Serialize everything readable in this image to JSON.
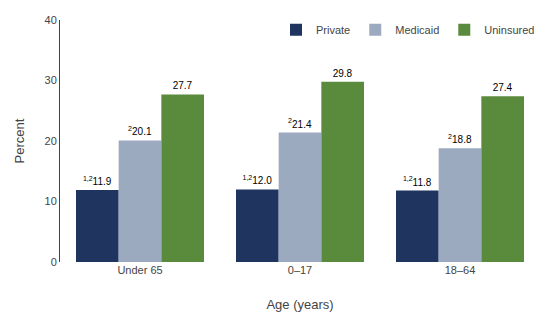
{
  "chart_data": {
    "type": "bar",
    "xlabel": "Age (years)",
    "ylabel": "Percent",
    "categories": [
      "Under 65",
      "0–17",
      "18–64"
    ],
    "series": [
      {
        "name": "Private",
        "color": "#1f3560",
        "values": [
          11.9,
          12.0,
          11.8
        ],
        "value_labels": [
          "11.9",
          "12.0",
          "11.8"
        ],
        "superscripts": [
          "1,2",
          "1,2",
          "1,2"
        ]
      },
      {
        "name": "Medicaid",
        "color": "#9baabf",
        "values": [
          20.1,
          21.4,
          18.8
        ],
        "value_labels": [
          "20.1",
          "21.4",
          "18.8"
        ],
        "superscripts": [
          "2",
          "2",
          "2"
        ]
      },
      {
        "name": "Uninsured",
        "color": "#5a8a3c",
        "values": [
          27.7,
          29.8,
          27.4
        ],
        "value_labels": [
          "27.7",
          "29.8",
          "27.4"
        ]
      }
    ],
    "ylim": [
      0,
      40
    ],
    "yticks": [
      0,
      10,
      20,
      30,
      40
    ],
    "grid": false,
    "legend": "upper right",
    "data_labels": true,
    "background_color": "#ffffff"
  }
}
